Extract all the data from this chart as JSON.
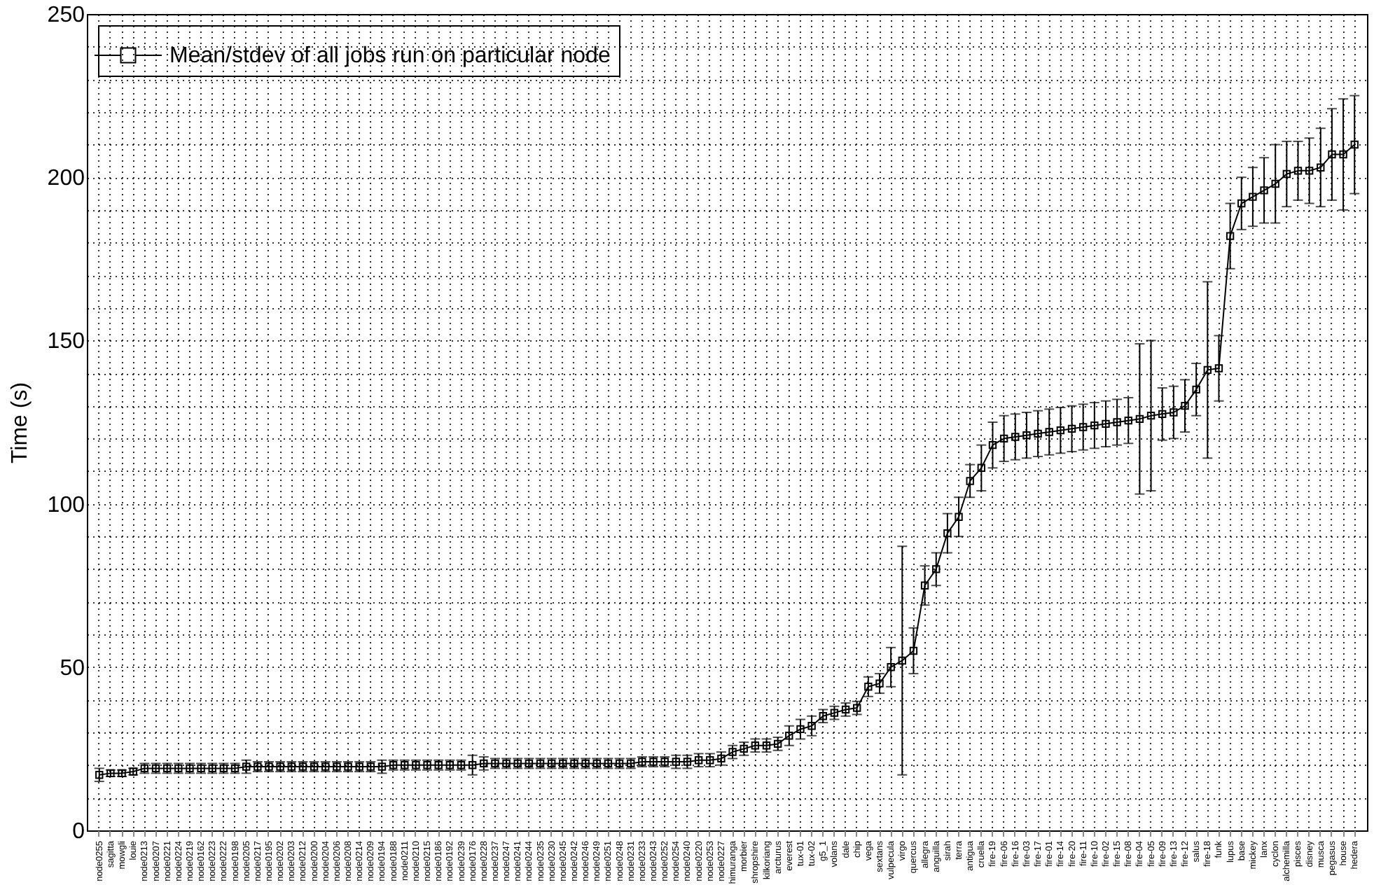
{
  "chart_data": {
    "type": "line",
    "ylabel": "Time (s)",
    "categories": [
      "node0255",
      "sagitta",
      "mowgli",
      "louie",
      "node0213",
      "node0207",
      "node0221",
      "node0224",
      "node0219",
      "node0162",
      "node0223",
      "node0222",
      "node0198",
      "node0205",
      "node0217",
      "node0195",
      "node0202",
      "node0203",
      "node0212",
      "node0200",
      "node0204",
      "node0206",
      "node0208",
      "node0214",
      "node0209",
      "node0194",
      "node0188",
      "node0211",
      "node0210",
      "node0215",
      "node0186",
      "node0192",
      "node0239",
      "node0176",
      "node0228",
      "node0237",
      "node0247",
      "node0241",
      "node0244",
      "node0235",
      "node0230",
      "node0245",
      "node0242",
      "node0246",
      "node0249",
      "node0251",
      "node0248",
      "node0231",
      "node0233",
      "node0243",
      "node0252",
      "node0254",
      "node0240",
      "node0220",
      "node0253",
      "node0227",
      "himuranga",
      "morbier",
      "shropshire",
      "kilkoriang",
      "arcturus",
      "everest",
      "tux-01",
      "tux-02",
      "g5_1",
      "volans",
      "dale",
      "chip",
      "vega",
      "sextans",
      "vulpecula",
      "virgo",
      "quercus",
      "allegra",
      "anguilla",
      "sirah",
      "terra",
      "antigua",
      "cruella",
      "fire-19",
      "fire-06",
      "fire-16",
      "fire-03",
      "fire-17",
      "fire-01",
      "fire-14",
      "fire-20",
      "fire-11",
      "fire-10",
      "fire-02",
      "fire-15",
      "fire-08",
      "fire-04",
      "fire-05",
      "fire-09",
      "fire-13",
      "fire-12",
      "salus",
      "fire-18",
      "funk",
      "lupus",
      "base",
      "mickey",
      "lanx",
      "cyclon",
      "alchemilla",
      "pisces",
      "disney",
      "musca",
      "pegasus",
      "house",
      "hedera"
    ],
    "series": [
      {
        "name": "Mean/stdev of all jobs run on particular node",
        "color": "#000000",
        "values": [
          17,
          17.5,
          17.5,
          18,
          19,
          19,
          19,
          19,
          19,
          19,
          19,
          19,
          19,
          19.5,
          19.5,
          19.5,
          19.5,
          19.5,
          19.5,
          19.5,
          19.5,
          19.5,
          19.5,
          19.5,
          19.5,
          19.5,
          20,
          20,
          20,
          20,
          20,
          20,
          20,
          20,
          20.5,
          20.5,
          20.5,
          20.5,
          20.5,
          20.5,
          20.5,
          20.5,
          20.5,
          20.5,
          20.5,
          20.5,
          20.5,
          20.5,
          21,
          21,
          21,
          21,
          21,
          21.5,
          21.5,
          22,
          24,
          25,
          26,
          26,
          26.5,
          29,
          31,
          32,
          35,
          36,
          37,
          37.5,
          44,
          45,
          50,
          52,
          55,
          75,
          80,
          91,
          96,
          107,
          111,
          118,
          120,
          120.5,
          121,
          121.5,
          122,
          122.5,
          123,
          123.5,
          124,
          124.5,
          125,
          125.5,
          126,
          127,
          127.5,
          128,
          130,
          135,
          141,
          141.5,
          182,
          192,
          194,
          196,
          198,
          201,
          202,
          202,
          203,
          207,
          207,
          210
        ],
        "errors": [
          2,
          1,
          1,
          1,
          1.5,
          1.5,
          1.5,
          1.5,
          1.5,
          1.5,
          1.5,
          1.5,
          1.5,
          2,
          1.5,
          1.5,
          1.5,
          1.5,
          1.5,
          1.5,
          1.5,
          1.5,
          1.5,
          1.5,
          1.5,
          2,
          1.5,
          1.5,
          1.5,
          1.5,
          1.5,
          1.5,
          1.5,
          3,
          2,
          1.5,
          1.5,
          1.5,
          1.5,
          1.5,
          1.5,
          1.5,
          1.5,
          1.5,
          1.5,
          1.5,
          1.5,
          1.5,
          1.5,
          1.5,
          1.5,
          2,
          2,
          2,
          2,
          2,
          2,
          2,
          2,
          2,
          2,
          3,
          3,
          3,
          2,
          2,
          2,
          2,
          3,
          3,
          6,
          35,
          7,
          6,
          5,
          6,
          6,
          5,
          7,
          7,
          7,
          7,
          7,
          7,
          7,
          7,
          7,
          7,
          7,
          7,
          7,
          7,
          23,
          23,
          8,
          8,
          8,
          8,
          27,
          10,
          10,
          8,
          9,
          10,
          12,
          10,
          9,
          10,
          12,
          14,
          17,
          15
        ]
      }
    ],
    "ylim": [
      0,
      250
    ],
    "yticks": [
      0,
      {
        "value": 10,
        "label": null
      },
      {
        "value": 20,
        "label": null
      },
      {
        "value": 30,
        "label": null
      },
      {
        "value": 40,
        "label": null
      },
      50,
      {
        "value": 60,
        "label": null
      },
      {
        "value": 70,
        "label": null
      },
      {
        "value": 80,
        "label": null
      },
      {
        "value": 90,
        "label": null
      },
      100,
      {
        "value": 110,
        "label": null
      },
      {
        "value": 120,
        "label": null
      },
      {
        "value": 130,
        "label": null
      },
      {
        "value": 140,
        "label": null
      },
      150,
      {
        "value": 160,
        "label": null
      },
      {
        "value": 170,
        "label": null
      },
      {
        "value": 180,
        "label": null
      },
      {
        "value": 190,
        "label": null
      },
      200,
      {
        "value": 210,
        "label": null
      },
      {
        "value": 220,
        "label": null
      },
      {
        "value": 230,
        "label": null
      },
      {
        "value": 240,
        "label": null
      },
      250
    ],
    "grid": true,
    "legend": "top left",
    "marker": "square",
    "line_style": "solid"
  }
}
